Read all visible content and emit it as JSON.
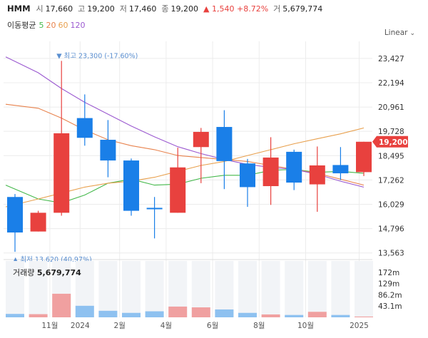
{
  "header": {
    "symbol": "HMM",
    "open_label": "시",
    "open": "17,660",
    "high_label": "고",
    "high": "19,200",
    "low_label": "저",
    "low": "17,460",
    "close_label": "종",
    "close": "19,200",
    "change_arrow": "▲",
    "change": "1,540",
    "change_pct": "+8.72%",
    "volume_label": "거",
    "volume": "5,679,774"
  },
  "ma_legend": {
    "title": "이동평균",
    "items": [
      {
        "label": "5",
        "color": "#43b84a"
      },
      {
        "label": "20",
        "color": "#e8834e"
      },
      {
        "label": "60",
        "color": "#e8a04e"
      },
      {
        "label": "120",
        "color": "#9b59d0"
      }
    ]
  },
  "scale_button": {
    "label": "Linear",
    "icon": "chevron-down-icon"
  },
  "colors": {
    "up": "#e8413e",
    "down": "#1a7fe8",
    "up_vol": "#f0a0a0",
    "down_vol": "#8ec1f0",
    "grid": "#ececec",
    "text": "#333333"
  },
  "chart_data": {
    "type": "candlestick",
    "symbol": "HMM",
    "price_ticks": [
      "23,427",
      "22,194",
      "20,961",
      "19,728",
      "18,495",
      "17,262",
      "16,029",
      "14,796",
      "13,563"
    ],
    "price_tick_values": [
      23427,
      22194,
      20961,
      19728,
      18495,
      17262,
      16029,
      14796,
      13563
    ],
    "ylim": [
      13300,
      24000
    ],
    "last_price": "19,200",
    "last_price_value": 19200,
    "max_label": "최고 23,300 (-17.60%)",
    "max_value": 23300,
    "min_label": "최저 13,620 (40.97%)",
    "min_value": 13620,
    "x_labels": [
      {
        "text": "11월",
        "index": 1.5
      },
      {
        "text": "2024",
        "index": 2.8
      },
      {
        "text": "2월",
        "index": 4.5
      },
      {
        "text": "4월",
        "index": 6.5
      },
      {
        "text": "6월",
        "index": 8.5
      },
      {
        "text": "8월",
        "index": 10.5
      },
      {
        "text": "10월",
        "index": 12.5
      },
      {
        "text": "2025",
        "index": 14.8
      }
    ],
    "candles": [
      {
        "o": 16400,
        "h": 16550,
        "l": 13620,
        "c": 14600
      },
      {
        "o": 14650,
        "h": 15700,
        "l": 14650,
        "c": 15600
      },
      {
        "o": 15600,
        "h": 23300,
        "l": 15450,
        "c": 19630
      },
      {
        "o": 20400,
        "h": 21600,
        "l": 19000,
        "c": 19400
      },
      {
        "o": 19300,
        "h": 20300,
        "l": 17400,
        "c": 18250
      },
      {
        "o": 18250,
        "h": 18350,
        "l": 15450,
        "c": 15700
      },
      {
        "o": 15850,
        "h": 16400,
        "l": 14300,
        "c": 15800
      },
      {
        "o": 15600,
        "h": 18900,
        "l": 15600,
        "c": 17900
      },
      {
        "o": 18930,
        "h": 19900,
        "l": 17100,
        "c": 19700
      },
      {
        "o": 19950,
        "h": 20800,
        "l": 16800,
        "c": 18220
      },
      {
        "o": 18100,
        "h": 18330,
        "l": 15900,
        "c": 16900
      },
      {
        "o": 16950,
        "h": 19430,
        "l": 16000,
        "c": 18400
      },
      {
        "o": 18690,
        "h": 18800,
        "l": 16750,
        "c": 17130
      },
      {
        "o": 17040,
        "h": 18960,
        "l": 15650,
        "c": 18000
      },
      {
        "o": 18020,
        "h": 18930,
        "l": 17260,
        "c": 17600
      },
      {
        "o": 17660,
        "h": 19200,
        "l": 17460,
        "c": 19200
      }
    ],
    "ma": [
      {
        "name": "5",
        "color": "#43b84a",
        "values": [
          17000,
          16300,
          16100,
          16500,
          17100,
          17300,
          17000,
          17050,
          17350,
          17500,
          17500,
          17750,
          17800,
          17650,
          17700,
          17600
        ]
      },
      {
        "name": "20",
        "color": "#e8834e",
        "values": [
          21100,
          20900,
          20400,
          19800,
          19300,
          19000,
          18800,
          18500,
          18400,
          18300,
          18200,
          18000,
          17800,
          17600,
          17300,
          17000
        ]
      },
      {
        "name": "60",
        "color": "#e8a04e",
        "values": [
          15900,
          16300,
          16600,
          16900,
          17100,
          17200,
          17400,
          17700,
          18000,
          18200,
          18500,
          18800,
          19100,
          19350,
          19600,
          19900
        ]
      },
      {
        "name": "120",
        "color": "#9b59d0",
        "values": [
          23500,
          22700,
          21900,
          21200,
          20600,
          20000,
          19450,
          18950,
          18600,
          18300,
          18050,
          17900,
          17800,
          17550,
          17200,
          16900
        ]
      }
    ],
    "volume_label": "거래량",
    "volume_value": "5,679,774",
    "volume_ticks": [
      "172m",
      "129m",
      "86.2m",
      "43.1m"
    ],
    "volume_tick_values": [
      172,
      129,
      86.2,
      43.1
    ],
    "vmax": 215,
    "volumes": [
      13,
      12,
      90,
      44,
      25,
      17,
      23,
      41,
      38,
      30,
      17,
      11,
      9,
      21,
      9,
      3
    ]
  }
}
